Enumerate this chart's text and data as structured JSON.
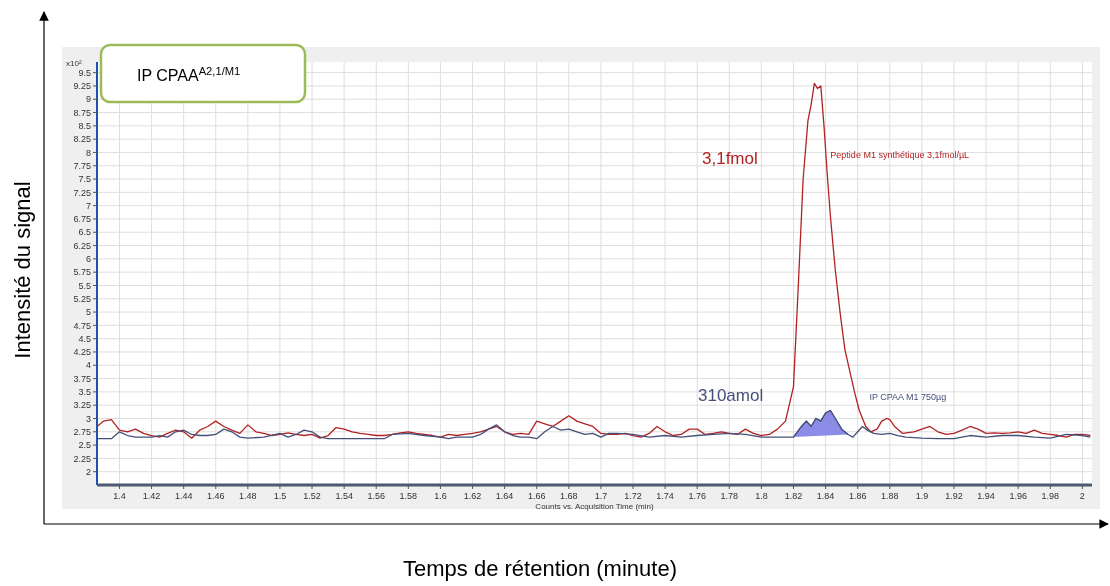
{
  "chart_data": {
    "type": "line",
    "title": "IP  CPAA$^{A2,1/M1}$",
    "xlabel": "Temps de rétention (minute)",
    "ylabel": "Intensité du signal",
    "annotations": [
      "x10²",
      "Counts vs. Acquisition Time (min)",
      "3,1fmol",
      "310amol"
    ],
    "xlim": [
      1.386,
      2.006
    ],
    "ylim": [
      1.75,
      9.7
    ],
    "xticks": [
      1.4,
      1.42,
      1.44,
      1.46,
      1.48,
      1.5,
      1.52,
      1.54,
      1.56,
      1.58,
      1.6,
      1.62,
      1.64,
      1.66,
      1.68,
      1.7,
      1.72,
      1.74,
      1.76,
      1.78,
      1.8,
      1.82,
      1.84,
      1.86,
      1.88,
      1.9,
      1.92,
      1.94,
      1.96,
      1.98,
      2
    ],
    "yticks": [
      2,
      2.25,
      2.5,
      2.75,
      3,
      3.25,
      3.5,
      3.75,
      4,
      4.25,
      4.5,
      4.75,
      5,
      5.25,
      5.5,
      5.75,
      6,
      6.25,
      6.5,
      6.75,
      7,
      7.25,
      7.5,
      7.75,
      8,
      8.25,
      8.5,
      8.75,
      9,
      9.25,
      9.5
    ],
    "grid": true,
    "marker": "none",
    "line_style": "solid",
    "series": [
      {
        "name": "Peptide M1 synthétique 3,1fmol/µL",
        "color": "#b22222",
        "x": [
          1.386,
          1.39,
          1.395,
          1.4,
          1.405,
          1.41,
          1.415,
          1.42,
          1.425,
          1.43,
          1.435,
          1.44,
          1.445,
          1.45,
          1.455,
          1.46,
          1.465,
          1.47,
          1.475,
          1.48,
          1.485,
          1.49,
          1.495,
          1.5,
          1.505,
          1.51,
          1.515,
          1.52,
          1.525,
          1.53,
          1.535,
          1.54,
          1.545,
          1.55,
          1.555,
          1.56,
          1.565,
          1.57,
          1.575,
          1.58,
          1.585,
          1.59,
          1.595,
          1.6,
          1.605,
          1.61,
          1.615,
          1.62,
          1.625,
          1.63,
          1.635,
          1.64,
          1.645,
          1.65,
          1.655,
          1.66,
          1.665,
          1.67,
          1.675,
          1.68,
          1.685,
          1.69,
          1.695,
          1.7,
          1.705,
          1.71,
          1.715,
          1.72,
          1.725,
          1.73,
          1.735,
          1.74,
          1.745,
          1.75,
          1.755,
          1.76,
          1.765,
          1.77,
          1.775,
          1.78,
          1.785,
          1.79,
          1.795,
          1.8,
          1.805,
          1.81,
          1.815,
          1.82,
          1.823,
          1.826,
          1.829,
          1.831,
          1.833,
          1.835,
          1.837,
          1.839,
          1.841,
          1.843,
          1.846,
          1.849,
          1.852,
          1.855,
          1.858,
          1.861,
          1.865,
          1.868,
          1.872,
          1.875,
          1.878,
          1.88,
          1.883,
          1.888,
          1.895,
          1.9,
          1.905,
          1.91,
          1.915,
          1.92,
          1.925,
          1.93,
          1.935,
          1.94,
          1.945,
          1.95,
          1.955,
          1.96,
          1.965,
          1.97,
          1.975,
          1.98,
          1.985,
          1.99,
          1.995,
          2,
          2.005
        ],
        "values": [
          2.85,
          2.95,
          2.98,
          2.78,
          2.75,
          2.8,
          2.72,
          2.68,
          2.65,
          2.72,
          2.78,
          2.75,
          2.63,
          2.78,
          2.85,
          2.95,
          2.85,
          2.78,
          2.72,
          2.88,
          2.75,
          2.72,
          2.68,
          2.7,
          2.73,
          2.7,
          2.68,
          2.7,
          2.63,
          2.68,
          2.83,
          2.8,
          2.75,
          2.72,
          2.7,
          2.68,
          2.68,
          2.7,
          2.73,
          2.75,
          2.72,
          2.7,
          2.68,
          2.65,
          2.7,
          2.68,
          2.7,
          2.72,
          2.75,
          2.8,
          2.85,
          2.75,
          2.7,
          2.72,
          2.7,
          2.95,
          2.9,
          2.85,
          2.95,
          3.05,
          2.95,
          2.9,
          2.85,
          2.72,
          2.7,
          2.7,
          2.72,
          2.68,
          2.65,
          2.72,
          2.85,
          2.75,
          2.68,
          2.7,
          2.8,
          2.8,
          2.7,
          2.72,
          2.75,
          2.72,
          2.7,
          2.8,
          2.72,
          2.68,
          2.7,
          2.8,
          2.95,
          3.6,
          5.5,
          7.5,
          8.6,
          8.9,
          9.3,
          9.2,
          9.25,
          8.5,
          7.6,
          6.8,
          5.8,
          5.0,
          4.3,
          3.9,
          3.5,
          3.15,
          2.85,
          2.75,
          2.8,
          2.95,
          3.0,
          2.98,
          2.85,
          2.72,
          2.75,
          2.8,
          2.85,
          2.75,
          2.7,
          2.72,
          2.78,
          2.85,
          2.8,
          2.72,
          2.73,
          2.72,
          2.73,
          2.75,
          2.72,
          2.78,
          2.72,
          2.7,
          2.68,
          2.65,
          2.7,
          2.7,
          2.68
        ]
      },
      {
        "name": "IP CPAA M1 750µg",
        "color": "#44507a",
        "x": [
          1.386,
          1.395,
          1.4,
          1.405,
          1.41,
          1.42,
          1.425,
          1.43,
          1.435,
          1.44,
          1.445,
          1.45,
          1.455,
          1.46,
          1.465,
          1.47,
          1.475,
          1.48,
          1.49,
          1.5,
          1.505,
          1.51,
          1.515,
          1.52,
          1.525,
          1.53,
          1.54,
          1.55,
          1.56,
          1.565,
          1.57,
          1.58,
          1.59,
          1.6,
          1.605,
          1.61,
          1.62,
          1.625,
          1.63,
          1.635,
          1.64,
          1.645,
          1.65,
          1.655,
          1.66,
          1.665,
          1.67,
          1.675,
          1.68,
          1.685,
          1.69,
          1.695,
          1.7,
          1.705,
          1.71,
          1.72,
          1.73,
          1.74,
          1.75,
          1.76,
          1.77,
          1.78,
          1.79,
          1.8,
          1.81,
          1.82,
          1.825,
          1.828,
          1.831,
          1.834,
          1.837,
          1.84,
          1.843,
          1.846,
          1.85,
          1.854,
          1.857,
          1.86,
          1.863,
          1.866,
          1.87,
          1.875,
          1.88,
          1.885,
          1.89,
          1.9,
          1.91,
          1.92,
          1.93,
          1.94,
          1.95,
          1.96,
          1.97,
          1.98,
          1.99,
          2,
          2.005
        ],
        "values": [
          2.62,
          2.62,
          2.75,
          2.68,
          2.65,
          2.65,
          2.68,
          2.65,
          2.75,
          2.78,
          2.7,
          2.68,
          2.68,
          2.7,
          2.8,
          2.75,
          2.65,
          2.63,
          2.65,
          2.72,
          2.65,
          2.7,
          2.78,
          2.75,
          2.65,
          2.62,
          2.62,
          2.62,
          2.62,
          2.62,
          2.7,
          2.72,
          2.68,
          2.65,
          2.62,
          2.65,
          2.65,
          2.7,
          2.8,
          2.88,
          2.75,
          2.68,
          2.65,
          2.65,
          2.62,
          2.75,
          2.85,
          2.78,
          2.8,
          2.75,
          2.7,
          2.72,
          2.65,
          2.72,
          2.72,
          2.7,
          2.65,
          2.68,
          2.65,
          2.68,
          2.7,
          2.72,
          2.7,
          2.65,
          2.65,
          2.65,
          2.85,
          2.95,
          2.85,
          3.0,
          2.95,
          3.1,
          3.15,
          3.0,
          2.8,
          2.7,
          2.65,
          2.75,
          2.85,
          2.78,
          2.72,
          2.7,
          2.72,
          2.68,
          2.65,
          2.63,
          2.62,
          2.62,
          2.68,
          2.65,
          2.68,
          2.68,
          2.65,
          2.63,
          2.7,
          2.68,
          2.65
        ]
      },
      {
        "type": "area",
        "color": "#8c8ce6",
        "x": [
          1.82,
          1.825,
          1.828,
          1.831,
          1.834,
          1.837,
          1.84,
          1.843,
          1.846,
          1.85,
          1.854
        ],
        "values": [
          2.65,
          2.85,
          2.95,
          2.85,
          3.0,
          2.95,
          3.1,
          3.15,
          3.0,
          2.8,
          2.7
        ]
      }
    ]
  }
}
